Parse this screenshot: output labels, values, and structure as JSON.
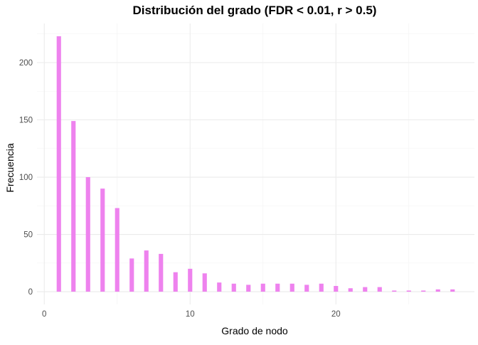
{
  "chart_data": {
    "type": "bar",
    "title": "Distribución del grado (FDR < 0.01, r > 0.5)",
    "xlabel": "Grado de nodo",
    "ylabel": "Frecuencia",
    "x": [
      1,
      2,
      3,
      4,
      5,
      6,
      7,
      8,
      9,
      10,
      11,
      12,
      13,
      14,
      15,
      16,
      17,
      18,
      19,
      20,
      21,
      22,
      23,
      24,
      25,
      26,
      27,
      28
    ],
    "values": [
      223,
      149,
      100,
      90,
      73,
      29,
      36,
      33,
      17,
      20,
      16,
      8,
      7,
      6,
      7,
      7,
      7,
      6,
      7,
      5,
      3,
      4,
      4,
      1,
      1,
      1,
      2,
      2
    ],
    "xlim": [
      -0.5,
      29.5
    ],
    "ylim": [
      -11.15,
      234.15
    ],
    "x_ticks": [
      0,
      10,
      20
    ],
    "y_ticks": [
      0,
      50,
      100,
      150,
      200
    ],
    "grid": true,
    "bar_color": "#ee82ee",
    "grid_color": "#ebebeb",
    "theme": "minimal"
  }
}
